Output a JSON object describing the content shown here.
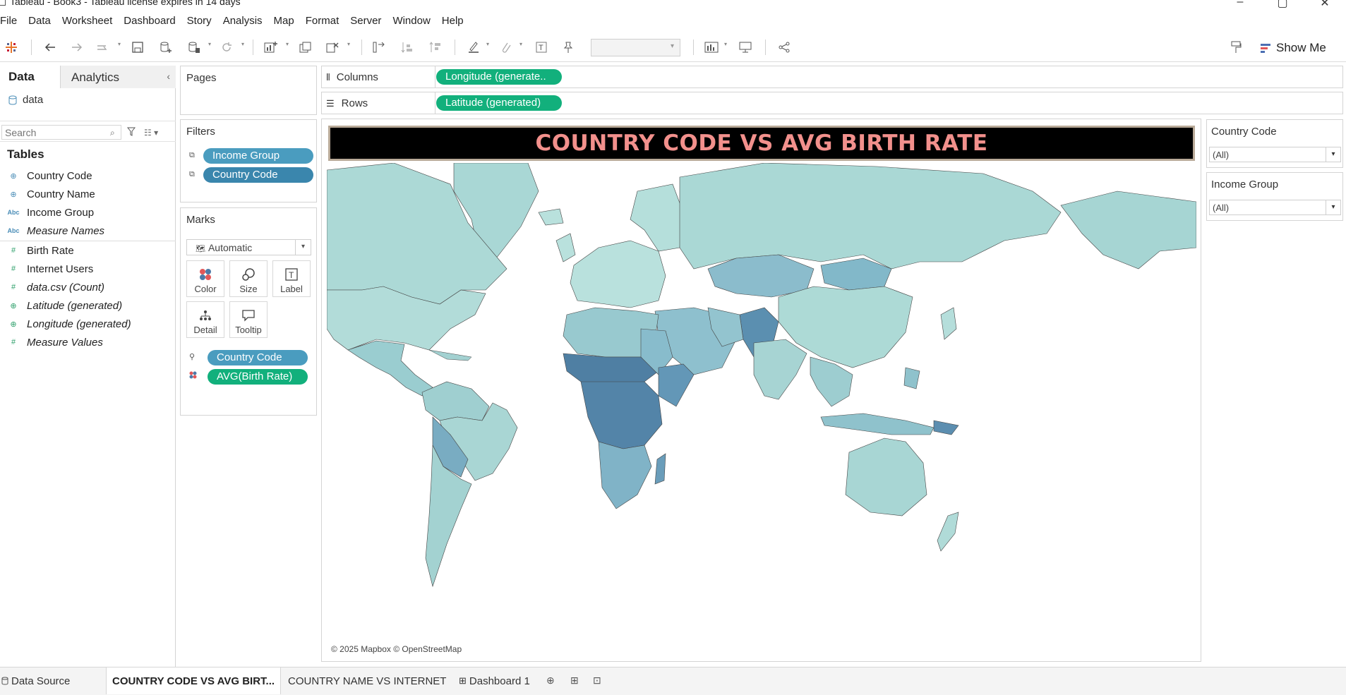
{
  "window": {
    "title": "Tableau - Book3 - Tableau license expires in 14 days"
  },
  "menu": [
    "File",
    "Data",
    "Worksheet",
    "Dashboard",
    "Story",
    "Analysis",
    "Map",
    "Format",
    "Server",
    "Window",
    "Help"
  ],
  "toolbar": {
    "show_me_label": "Show Me"
  },
  "data_pane": {
    "tab_data": "Data",
    "tab_analytics": "Analytics",
    "datasource": "data",
    "search_placeholder": "Search",
    "tables_heading": "Tables",
    "dimensions": [
      {
        "name": "Country Code",
        "icon": "globe-icon"
      },
      {
        "name": "Country Name",
        "icon": "globe-icon"
      },
      {
        "name": "Income Group",
        "icon": "abc-icon"
      },
      {
        "name": "Measure Names",
        "icon": "abc-icon"
      }
    ],
    "measures": [
      {
        "name": "Birth Rate",
        "icon": "hash-icon"
      },
      {
        "name": "Internet Users",
        "icon": "hash-icon"
      },
      {
        "name": "data.csv (Count)",
        "icon": "hash-icon"
      },
      {
        "name": "Latitude (generated)",
        "icon": "globe-icon"
      },
      {
        "name": "Longitude (generated)",
        "icon": "globe-icon"
      },
      {
        "name": "Measure Values",
        "icon": "hash-icon"
      }
    ]
  },
  "pages": {
    "title": "Pages"
  },
  "filters": {
    "title": "Filters",
    "items": [
      "Income Group",
      "Country Code"
    ]
  },
  "marks": {
    "title": "Marks",
    "type": "Automatic",
    "buttons": [
      "Color",
      "Size",
      "Label",
      "Detail",
      "Tooltip"
    ],
    "fields": [
      {
        "name": "Country Code",
        "icon": "detail-icon"
      },
      {
        "name": "AVG(Birth Rate)",
        "icon": "color-icon"
      }
    ]
  },
  "shelves": {
    "columns_label": "Columns",
    "columns_pill": "Longitude (generate..",
    "rows_label": "Rows",
    "rows_pill": "Latitude (generated)"
  },
  "view": {
    "title": "COUNTRY CODE VS AVG BIRTH RATE",
    "attribution": "© 2025 Mapbox © OpenStreetMap",
    "colors": {
      "low": "#b9dedd",
      "mid": "#8fc2cc",
      "high": "#4e7fa3",
      "title_text": "#f2908c"
    }
  },
  "quick_filters": [
    {
      "title": "Country Code",
      "value": "(All)"
    },
    {
      "title": "Income Group",
      "value": "(All)"
    }
  ],
  "sheet_tabs": {
    "data_source": "Data Source",
    "sheets": [
      "COUNTRY CODE VS AVG BIRT...",
      "COUNTRY NAME VS INTERNET",
      "Dashboard 1"
    ]
  }
}
